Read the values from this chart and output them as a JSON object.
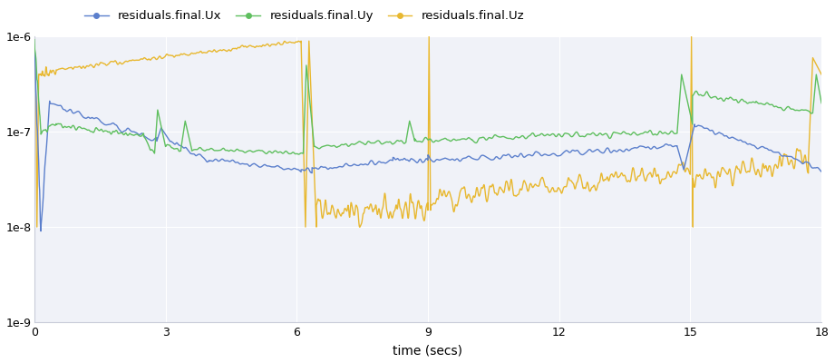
{
  "xlabel": "time (secs)",
  "legend_labels": [
    "residuals.final.Ux",
    "residuals.final.Uy",
    "residuals.final.Uz"
  ],
  "colors": [
    "#5B7FCC",
    "#5FBF5F",
    "#E8B830"
  ],
  "background_color": "#ffffff",
  "plot_background_color": "#f0f2f8",
  "grid_color": "#ffffff",
  "xlim": [
    0,
    18
  ],
  "ylim_log": [
    -9,
    -6
  ],
  "xticks": [
    0,
    3,
    6,
    9,
    12,
    15,
    18
  ],
  "yticks_log": [
    -9,
    -8,
    -7,
    -6
  ],
  "linewidth": 1.0,
  "marker_size": 4,
  "figsize": [
    9.21,
    4.0
  ],
  "dpi": 100
}
